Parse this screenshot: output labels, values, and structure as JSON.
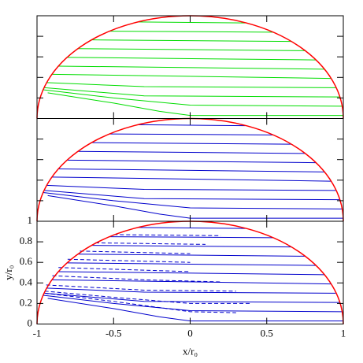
{
  "chart_data": [
    {
      "type": "line",
      "line_color": "#00dd00",
      "boundary_color": "#ff0000",
      "xlim": [
        -1,
        1
      ],
      "ylim": [
        0,
        1
      ],
      "xticks": [
        -1,
        -0.5,
        0,
        0.5,
        1
      ],
      "yticks": [
        0,
        0.2,
        0.4,
        0.6,
        0.8,
        1
      ],
      "show_tick_labels": false,
      "series": [
        {
          "x": [
            -0.34,
            0.36
          ],
          "values": [
            0.94,
            0.93
          ]
        },
        {
          "x": [
            -0.53,
            0.54
          ],
          "values": [
            0.85,
            0.84
          ]
        },
        {
          "x": [
            -0.64,
            0.66
          ],
          "values": [
            0.765,
            0.75
          ]
        },
        {
          "x": [
            -0.73,
            0.75
          ],
          "values": [
            0.68,
            0.66
          ]
        },
        {
          "x": [
            -0.8,
            0.82
          ],
          "values": [
            0.595,
            0.57
          ]
        },
        {
          "x": [
            -0.86,
            0.88
          ],
          "values": [
            0.51,
            0.48
          ]
        },
        {
          "x": [
            -0.9,
            0.92
          ],
          "values": [
            0.43,
            0.39
          ]
        },
        {
          "x": [
            -0.94,
            -0.3,
            0.95
          ],
          "values": [
            0.35,
            0.31,
            0.3
          ]
        },
        {
          "x": [
            -0.95,
            -0.3,
            0.98
          ],
          "values": [
            0.3,
            0.22,
            0.21
          ]
        },
        {
          "x": [
            -0.96,
            -0.5,
            0,
            0.99
          ],
          "values": [
            0.28,
            0.2,
            0.13,
            0.12
          ]
        },
        {
          "x": [
            -0.93,
            -0.5,
            -0.2,
            0,
            1
          ],
          "values": [
            0.25,
            0.15,
            0.07,
            0.03,
            0.03
          ]
        }
      ]
    },
    {
      "type": "line",
      "line_color": "#0000cc",
      "boundary_color": "#ff0000",
      "xlim": [
        -1,
        1
      ],
      "ylim": [
        0,
        1
      ],
      "xticks": [
        -1,
        -0.5,
        0,
        0.5,
        1
      ],
      "yticks": [
        0,
        0.2,
        0.4,
        0.6,
        0.8,
        1
      ],
      "show_tick_labels": false,
      "series": [
        {
          "x": [
            -0.34,
            0.36
          ],
          "values": [
            0.94,
            0.93
          ]
        },
        {
          "x": [
            -0.53,
            0.54
          ],
          "values": [
            0.85,
            0.84
          ]
        },
        {
          "x": [
            -0.64,
            0.66
          ],
          "values": [
            0.765,
            0.75
          ]
        },
        {
          "x": [
            -0.73,
            0.75
          ],
          "values": [
            0.68,
            0.66
          ]
        },
        {
          "x": [
            -0.8,
            0.82
          ],
          "values": [
            0.595,
            0.57
          ]
        },
        {
          "x": [
            -0.86,
            0.88
          ],
          "values": [
            0.51,
            0.48
          ]
        },
        {
          "x": [
            -0.9,
            0.92
          ],
          "values": [
            0.43,
            0.39
          ]
        },
        {
          "x": [
            -0.94,
            -0.3,
            0.95
          ],
          "values": [
            0.35,
            0.31,
            0.3
          ]
        },
        {
          "x": [
            -0.95,
            -0.3,
            0.98
          ],
          "values": [
            0.3,
            0.22,
            0.21
          ]
        },
        {
          "x": [
            -0.96,
            -0.5,
            0,
            0.99
          ],
          "values": [
            0.28,
            0.2,
            0.13,
            0.12
          ]
        },
        {
          "x": [
            -0.93,
            -0.5,
            -0.2,
            0,
            1
          ],
          "values": [
            0.25,
            0.15,
            0.07,
            0.03,
            0.03
          ]
        }
      ]
    },
    {
      "type": "line",
      "line_color": "#0000cc",
      "boundary_color": "#ff0000",
      "xlim": [
        -1,
        1
      ],
      "ylim": [
        0,
        1
      ],
      "xticks": [
        -1,
        -0.5,
        0,
        0.5,
        1
      ],
      "yticks": [
        0,
        0.2,
        0.4,
        0.6,
        0.8,
        1
      ],
      "show_tick_labels": true,
      "xlabel": "x/r₀",
      "ylabel": "y/r₀",
      "series": [
        {
          "x": [
            -0.34,
            0.36
          ],
          "values": [
            0.94,
            0.93
          ]
        },
        {
          "x": [
            -0.53,
            0.54
          ],
          "values": [
            0.85,
            0.84
          ]
        },
        {
          "x": [
            -0.64,
            0.66
          ],
          "values": [
            0.765,
            0.75
          ]
        },
        {
          "x": [
            -0.73,
            0.75
          ],
          "values": [
            0.68,
            0.66
          ]
        },
        {
          "x": [
            -0.8,
            0.82
          ],
          "values": [
            0.595,
            0.57
          ]
        },
        {
          "x": [
            -0.86,
            0.88
          ],
          "values": [
            0.51,
            0.48
          ]
        },
        {
          "x": [
            -0.9,
            0.92
          ],
          "values": [
            0.43,
            0.39
          ]
        },
        {
          "x": [
            -0.94,
            -0.3,
            0.95
          ],
          "values": [
            0.35,
            0.31,
            0.3
          ]
        },
        {
          "x": [
            -0.95,
            -0.3,
            0.98
          ],
          "values": [
            0.3,
            0.22,
            0.21
          ]
        },
        {
          "x": [
            -0.96,
            -0.5,
            0,
            0.99
          ],
          "values": [
            0.28,
            0.2,
            0.13,
            0.12
          ]
        },
        {
          "x": [
            -0.93,
            -0.5,
            -0.2,
            0,
            1
          ],
          "values": [
            0.25,
            0.15,
            0.07,
            0.03,
            0.03
          ]
        },
        {
          "x": [
            -0.5,
            0.2
          ],
          "values": [
            0.87,
            0.86
          ],
          "dash": true
        },
        {
          "x": [
            -0.62,
            0.1
          ],
          "values": [
            0.79,
            0.775
          ],
          "dash": true
        },
        {
          "x": [
            -0.72,
            0
          ],
          "values": [
            0.71,
            0.685
          ],
          "dash": true
        },
        {
          "x": [
            -0.8,
            0
          ],
          "values": [
            0.63,
            0.6
          ],
          "dash": true
        },
        {
          "x": [
            -0.86,
            0
          ],
          "values": [
            0.55,
            0.51
          ],
          "dash": true
        },
        {
          "x": [
            -0.9,
            -0.3,
            0.2
          ],
          "values": [
            0.47,
            0.43,
            0.41
          ],
          "dash": true
        },
        {
          "x": [
            -0.94,
            -0.3,
            0.3
          ],
          "values": [
            0.38,
            0.33,
            0.32
          ],
          "dash": true
        },
        {
          "x": [
            -0.95,
            -0.5,
            0,
            0.4
          ],
          "values": [
            0.32,
            0.26,
            0.2,
            0.2
          ],
          "dash": true
        },
        {
          "x": [
            -0.95,
            -0.5,
            0,
            0.3
          ],
          "values": [
            0.3,
            0.22,
            0.12,
            0.11
          ],
          "dash": true
        }
      ]
    }
  ]
}
